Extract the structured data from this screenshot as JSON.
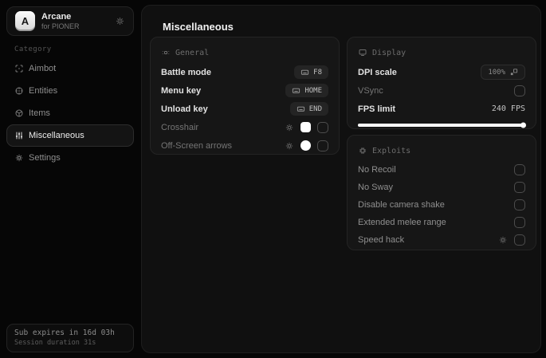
{
  "brand": {
    "initial": "A",
    "name": "Arcane",
    "subtitle": "for PIONER"
  },
  "sidebar": {
    "category_label": "Category",
    "items": [
      {
        "label": "Aimbot",
        "selected": false
      },
      {
        "label": "Entities",
        "selected": false
      },
      {
        "label": "Items",
        "selected": false
      },
      {
        "label": "Miscellaneous",
        "selected": true
      },
      {
        "label": "Settings",
        "selected": false
      }
    ],
    "footer": {
      "expiry": "Sub expires in 16d 03h",
      "session": "Session duration 31s"
    }
  },
  "main": {
    "title": "Miscellaneous",
    "general": {
      "title": "General",
      "rows": [
        {
          "label": "Battle mode",
          "type": "keybind",
          "key": "F8"
        },
        {
          "label": "Menu key",
          "type": "keybind",
          "key": "HOME"
        },
        {
          "label": "Unload key",
          "type": "keybind",
          "key": "END"
        },
        {
          "label": "Crosshair",
          "type": "color-toggle",
          "swatch_color": "#ffffff",
          "checked": false
        },
        {
          "label": "Off-Screen arrows",
          "type": "color-toggle",
          "swatch_color": "#ffffff",
          "checked": false
        }
      ]
    },
    "display": {
      "title": "Display",
      "rows": [
        {
          "label": "DPI scale",
          "type": "select",
          "value": "100%"
        },
        {
          "label": "VSync",
          "type": "checkbox",
          "checked": false
        },
        {
          "label": "FPS limit",
          "type": "slider",
          "value": "240 FPS",
          "slider_percent": 100
        }
      ]
    },
    "exploits": {
      "title": "Exploits",
      "rows": [
        {
          "label": "No Recoil",
          "checked": false
        },
        {
          "label": "No Sway",
          "checked": false
        },
        {
          "label": "Disable camera shake",
          "checked": false
        },
        {
          "label": "Extended melee range",
          "checked": false
        },
        {
          "label": "Speed hack",
          "checked": false,
          "has_settings": true
        }
      ]
    }
  },
  "colors": {
    "swatch": "#ffffff",
    "slider_fill": "#ffffff",
    "card_bg": "#161616",
    "card_border": "#242424"
  }
}
